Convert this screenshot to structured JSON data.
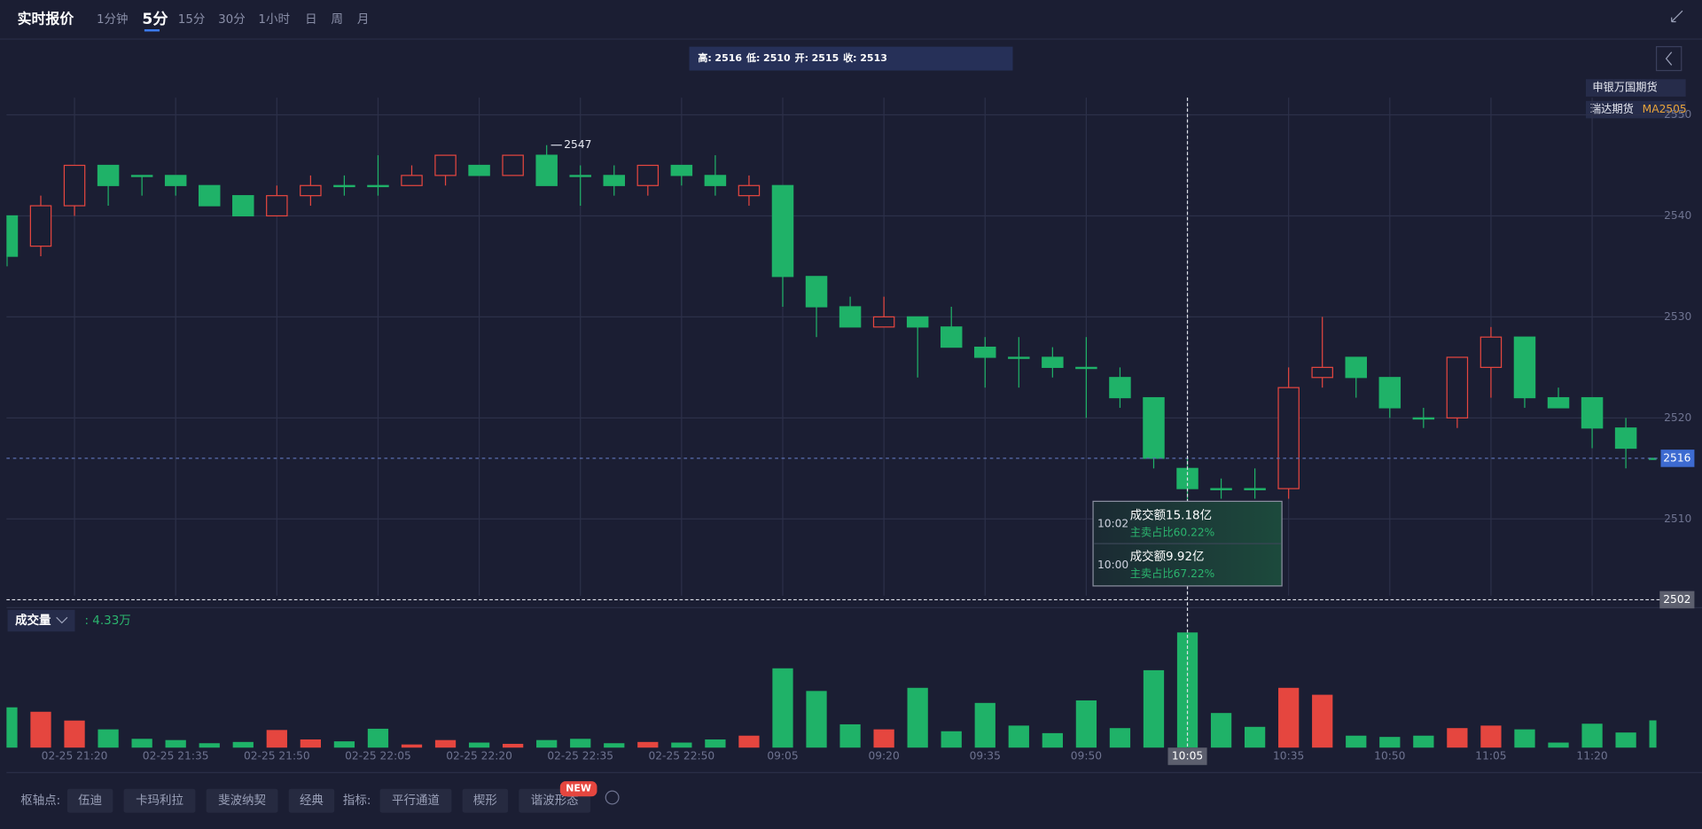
{
  "top_bar": {
    "title": "实时报价",
    "tabs": [
      "1分钟",
      "5分",
      "15分",
      "30分",
      "1小时",
      "日",
      "周",
      "月"
    ],
    "active_tab": 1
  },
  "legend": {
    "brokers": [
      "申银万国期货",
      "瑞达期货"
    ],
    "contract": "MA2505"
  },
  "info_box": {
    "labels": [
      "高:",
      "低:",
      "开:",
      "收:"
    ]
  },
  "crosshair": {
    "index": 35,
    "price": 2502
  },
  "tooltip": [
    {
      "time": "10:02",
      "amount": "成交额15.18亿",
      "ratio": "主卖占比60.22%"
    },
    {
      "time": "10:00",
      "amount": "成交额9.92亿",
      "ratio": "主卖占比67.22%"
    }
  ],
  "chart_data": {
    "type": "candlestick",
    "categories": [
      null,
      null,
      "02-25 21:20",
      null,
      null,
      "02-25 21:35",
      null,
      null,
      "02-25 21:50",
      null,
      null,
      "02-25 22:05",
      null,
      null,
      "02-25 22:20",
      null,
      null,
      "02-25 22:35",
      null,
      null,
      "02-25 22:50",
      null,
      null,
      "09:05",
      null,
      null,
      "09:20",
      null,
      null,
      "09:35",
      null,
      null,
      "09:50",
      null,
      null,
      "10:05",
      null,
      null,
      "10:35",
      null,
      null,
      "10:50",
      null,
      null,
      "11:05",
      null,
      null,
      "11:20",
      null,
      null
    ],
    "open": [
      2540,
      2537,
      2541,
      2545,
      2544,
      2544,
      2543,
      2542,
      2540,
      2542,
      2543,
      2543,
      2543,
      2544,
      2545,
      2544,
      2546,
      2544,
      2544,
      2543,
      2545,
      2544,
      2542,
      2543,
      2534,
      2531,
      2529,
      2530,
      2529,
      2527,
      2526,
      2526,
      2525,
      2524,
      2522,
      2515,
      2513,
      2513,
      2513,
      2524,
      2526,
      2524,
      2520,
      2520,
      2525,
      2528,
      2522,
      2522,
      2519,
      2516
    ],
    "high": [
      2540,
      2542,
      2545,
      2545,
      2544,
      2544,
      2543,
      2542,
      2543,
      2544,
      2544,
      2546,
      2545,
      2546,
      2545,
      2546,
      2547,
      2545,
      2545,
      2545,
      2545,
      2546,
      2544,
      2543,
      2534,
      2532,
      2532,
      2530,
      2531,
      2528,
      2528,
      2527,
      2528,
      2525,
      2522,
      2516,
      2514,
      2515,
      2525,
      2530,
      2526,
      2524,
      2521,
      2526,
      2529,
      2528,
      2523,
      2522,
      2520,
      2521
    ],
    "low": [
      2535,
      2536,
      2540,
      2541,
      2542,
      2542,
      2541,
      2540,
      2540,
      2541,
      2542,
      2542,
      2543,
      2543,
      2544,
      2544,
      2543,
      2541,
      2542,
      2542,
      2543,
      2542,
      2541,
      2531,
      2528,
      2529,
      2529,
      2524,
      2527,
      2523,
      2523,
      2524,
      2520,
      2521,
      2515,
      2510,
      2512,
      2512,
      2512,
      2523,
      2522,
      2520,
      2519,
      2519,
      2522,
      2521,
      2521,
      2517,
      2515,
      2514
    ],
    "close": [
      2536,
      2541,
      2545,
      2543,
      2544,
      2543,
      2541,
      2540,
      2542,
      2543,
      2543,
      2543,
      2544,
      2546,
      2544,
      2546,
      2543,
      2544,
      2543,
      2545,
      2544,
      2543,
      2543,
      2534,
      2531,
      2529,
      2530,
      2529,
      2527,
      2526,
      2526,
      2525,
      2525,
      2522,
      2516,
      2513,
      2513,
      2513,
      2523,
      2525,
      2524,
      2521,
      2520,
      2526,
      2528,
      2522,
      2521,
      2519,
      2517,
      2516
    ],
    "ylim": [
      2502.4,
      2551.7
    ],
    "yticks": [
      2510,
      2520,
      2530,
      2540,
      2550
    ],
    "grid": true,
    "up_color": "#e5463f",
    "down_color": "#1fb268",
    "volume": {
      "name": "成交量",
      "current_label": ": 4.33万",
      "ylim": [
        0,
        20
      ],
      "values": [
        6.4,
        5.7,
        4.3,
        2.9,
        1.4,
        1.2,
        0.7,
        0.9,
        2.8,
        1.3,
        1.0,
        3.0,
        0.5,
        1.2,
        0.8,
        0.6,
        1.2,
        1.4,
        0.7,
        0.9,
        0.8,
        1.3,
        1.9,
        12.6,
        9.0,
        3.7,
        2.9,
        9.5,
        2.6,
        7.1,
        3.5,
        2.3,
        7.5,
        3.1,
        12.3,
        18.3,
        5.5,
        3.3,
        9.5,
        8.4,
        1.9,
        1.7,
        1.9,
        3.1,
        3.5,
        2.9,
        0.8,
        3.8,
        2.4,
        4.33
      ]
    }
  },
  "toolbar": {
    "pivot_label": "枢轴点:",
    "pivot_buttons": [
      "伍迪",
      "卡玛利拉",
      "斐波纳契",
      "经典"
    ],
    "indicator_label": "指标:",
    "indicator_buttons": [
      "平行通道",
      "楔形",
      "谐波形态"
    ],
    "badge": "NEW"
  }
}
